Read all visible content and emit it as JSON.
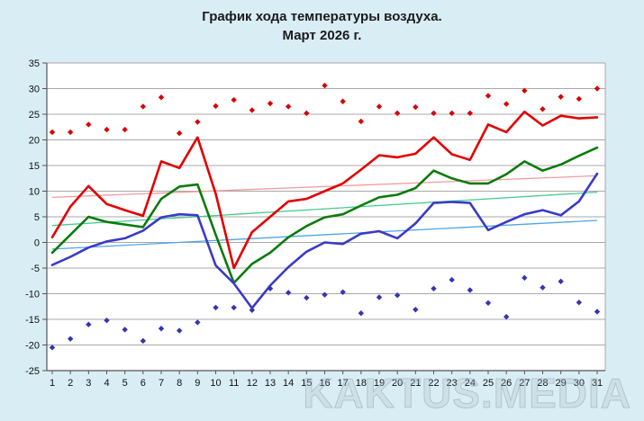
{
  "chart_data": {
    "type": "line",
    "title": "График хода температуры воздуха.",
    "subtitle": "Март 2026 г.",
    "xlabel": "",
    "ylabel": "",
    "x": [
      1,
      2,
      3,
      4,
      5,
      6,
      7,
      8,
      9,
      10,
      11,
      12,
      13,
      14,
      15,
      16,
      17,
      18,
      19,
      20,
      21,
      22,
      23,
      24,
      25,
      26,
      27,
      28,
      29,
      30,
      31
    ],
    "ylim": [
      -25,
      35
    ],
    "ytick_step": 5,
    "grid": true,
    "legend": "none",
    "series": [
      {
        "name": "record-high-dots",
        "type": "scatter-diamond",
        "color": "#d80000",
        "values": [
          21.5,
          21.5,
          23,
          22,
          22,
          26.5,
          28.3,
          21.3,
          23.5,
          26.6,
          27.8,
          25.8,
          27.1,
          26.5,
          25.2,
          30.6,
          27.5,
          23.6,
          26.5,
          25.2,
          26.4,
          25.2,
          25.2,
          25.2,
          28.6,
          27,
          29.6,
          26,
          28.4,
          28,
          30
        ]
      },
      {
        "name": "max-temp-line",
        "type": "line",
        "color": "#e20000",
        "values": [
          1,
          7,
          11,
          7.5,
          6.3,
          5.2,
          15.8,
          14.5,
          20.5,
          9.5,
          -5,
          2,
          5,
          8,
          8.5,
          10,
          11.5,
          14.2,
          17,
          16.6,
          17.3,
          20.5,
          17.2,
          16.1,
          23,
          21.5,
          25.5,
          22.8,
          24.7,
          24.2,
          24.4
        ]
      },
      {
        "name": "mean-temp-line",
        "type": "line",
        "color": "#0b7b0b",
        "values": [
          -2,
          1.5,
          5,
          4,
          3.5,
          3,
          8.5,
          10.9,
          11.3,
          1.5,
          -7.9,
          -4.2,
          -2,
          1,
          3.2,
          4.9,
          5.5,
          7.2,
          8.8,
          9.3,
          10.6,
          14,
          12.5,
          11.5,
          11.5,
          13.3,
          15.8,
          14,
          15.2,
          16.9,
          18.5
        ]
      },
      {
        "name": "min-temp-line",
        "type": "line",
        "color": "#3a3ac8",
        "values": [
          -4.4,
          -2.8,
          -1,
          0.2,
          0.8,
          2.3,
          4.9,
          5.5,
          5.3,
          -4.5,
          -8,
          -12.8,
          -8.4,
          -4.8,
          -1.8,
          0,
          -0.3,
          1.7,
          2.2,
          0.8,
          3.7,
          7.7,
          7.9,
          7.7,
          2.4,
          4,
          5.5,
          6.3,
          5.3,
          8,
          13.4
        ]
      },
      {
        "name": "record-low-dots",
        "type": "scatter-diamond",
        "color": "#3434b4",
        "values": [
          -20.5,
          -18.8,
          -16,
          -15.2,
          -17,
          -19.2,
          -16.8,
          -17.2,
          -15.6,
          -12.7,
          -12.7,
          -13.2,
          -9,
          -9.8,
          -10.8,
          -10.2,
          -9.7,
          -13.8,
          -10.7,
          -10.3,
          -13.1,
          -9,
          -7.3,
          -9.3,
          -11.8,
          -14.5,
          -6.9,
          -8.8,
          -7.6,
          -11.7,
          -13.5
        ]
      },
      {
        "name": "trend-max",
        "type": "trend-line",
        "color": "#f09c9c",
        "endpoints": [
          8.8,
          13.0
        ]
      },
      {
        "name": "trend-mean",
        "type": "trend-line",
        "color": "#46cc8e",
        "endpoints": [
          3.3,
          9.8
        ]
      },
      {
        "name": "trend-min",
        "type": "trend-line",
        "color": "#4fa5e8",
        "endpoints": [
          -1.3,
          4.3
        ]
      }
    ]
  },
  "watermark": {
    "text": "KAKTUS.MEDIA"
  },
  "colors": {
    "background": "#d9edf5",
    "plot_background": "#ffffff",
    "gridline": "#a8a8a8",
    "axis_line": "#555555",
    "tick_text": "#111111",
    "title_text": "#1b1b1b"
  }
}
